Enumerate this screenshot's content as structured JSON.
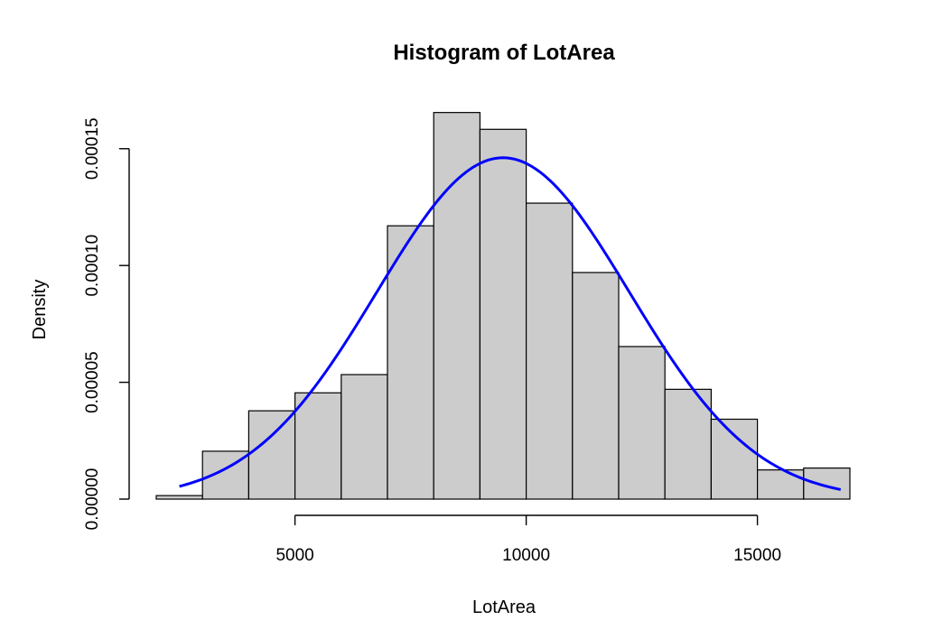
{
  "chart_data": {
    "type": "bar",
    "title": "Histogram of LotArea",
    "xlabel": "LotArea",
    "ylabel": "Density",
    "x_ticks": [
      5000,
      10000,
      15000
    ],
    "y_ticks": [
      "0.00000",
      "0.00005",
      "0.00010",
      "0.00015"
    ],
    "bins": [
      {
        "start": 2000,
        "end": 3000,
        "density": 1.5e-06
      },
      {
        "start": 3000,
        "end": 4000,
        "density": 2.05e-05
      },
      {
        "start": 4000,
        "end": 5000,
        "density": 3.78e-05
      },
      {
        "start": 5000,
        "end": 6000,
        "density": 4.55e-05
      },
      {
        "start": 6000,
        "end": 7000,
        "density": 5.33e-05
      },
      {
        "start": 7000,
        "end": 8000,
        "density": 0.000117
      },
      {
        "start": 8000,
        "end": 9000,
        "density": 0.0001655
      },
      {
        "start": 9000,
        "end": 10000,
        "density": 0.0001583
      },
      {
        "start": 10000,
        "end": 11000,
        "density": 0.0001267
      },
      {
        "start": 11000,
        "end": 12000,
        "density": 9.7e-05
      },
      {
        "start": 12000,
        "end": 13000,
        "density": 6.53e-05
      },
      {
        "start": 13000,
        "end": 14000,
        "density": 4.7e-05
      },
      {
        "start": 14000,
        "end": 15000,
        "density": 3.42e-05
      },
      {
        "start": 15000,
        "end": 16000,
        "density": 1.25e-05
      },
      {
        "start": 16000,
        "end": 17000,
        "density": 1.33e-05
      }
    ],
    "density_curve": {
      "type": "normal",
      "mean": 9500,
      "sd": 2730,
      "x_range": [
        2500,
        16800
      ]
    },
    "xlim": [
      2000,
      17000
    ],
    "ylim": [
      0,
      0.00017
    ],
    "colors": {
      "bar_fill": "#cccccc",
      "bar_stroke": "#000000",
      "curve": "#0000ff"
    },
    "grid": false,
    "legend": "none"
  }
}
